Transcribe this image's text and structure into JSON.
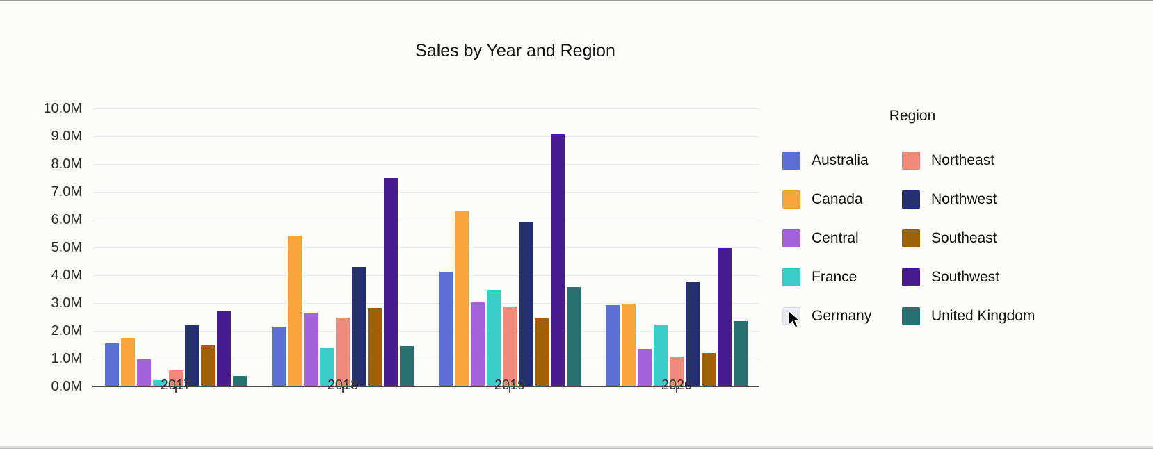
{
  "page": {
    "background_color": "#fcfcfb"
  },
  "chart_data": {
    "type": "bar",
    "title": "Sales by Year and Region",
    "xlabel": "",
    "ylabel": "",
    "categories": [
      "2017",
      "2018",
      "2019",
      "2020"
    ],
    "yaxis": {
      "min": 0,
      "max": 10,
      "step": 1,
      "unit": "M",
      "tick_labels": [
        "0.0M",
        "1.0M",
        "2.0M",
        "3.0M",
        "4.0M",
        "5.0M",
        "6.0M",
        "7.0M",
        "8.0M",
        "9.0M",
        "10.0M"
      ],
      "grid": true,
      "gridline_color": "#e8e9f1"
    },
    "series": [
      {
        "name": "Australia",
        "color": "#5b6fd6",
        "hidden": false,
        "values": [
          1.55,
          2.15,
          4.12,
          2.93
        ]
      },
      {
        "name": "Canada",
        "color": "#f9a63c",
        "hidden": false,
        "values": [
          1.72,
          5.43,
          6.3,
          2.97
        ]
      },
      {
        "name": "Central",
        "color": "#a263db",
        "hidden": false,
        "values": [
          0.97,
          2.66,
          3.03,
          1.35
        ]
      },
      {
        "name": "France",
        "color": "#3accc6",
        "hidden": false,
        "values": [
          0.22,
          1.4,
          3.47,
          2.22
        ]
      },
      {
        "name": "Germany",
        "color": "#e9eaf1",
        "hidden": true,
        "values": []
      },
      {
        "name": "Northeast",
        "color": "#f08b7b",
        "hidden": false,
        "values": [
          0.58,
          2.47,
          2.88,
          1.08
        ]
      },
      {
        "name": "Northwest",
        "color": "#26306f",
        "hidden": false,
        "values": [
          2.23,
          4.3,
          5.9,
          3.76
        ]
      },
      {
        "name": "Southeast",
        "color": "#9d6207",
        "hidden": false,
        "values": [
          1.48,
          2.83,
          2.45,
          1.21
        ]
      },
      {
        "name": "Southwest",
        "color": "#481b8f",
        "hidden": false,
        "values": [
          2.71,
          7.5,
          9.08,
          4.97
        ]
      },
      {
        "name": "United Kingdom",
        "color": "#26716f",
        "hidden": false,
        "values": [
          0.38,
          1.44,
          3.57,
          2.35
        ]
      }
    ],
    "legend": {
      "title": "Region",
      "position": "right",
      "columns": 2,
      "hidden_entry_swatch_color": "#e9eaf1"
    }
  }
}
